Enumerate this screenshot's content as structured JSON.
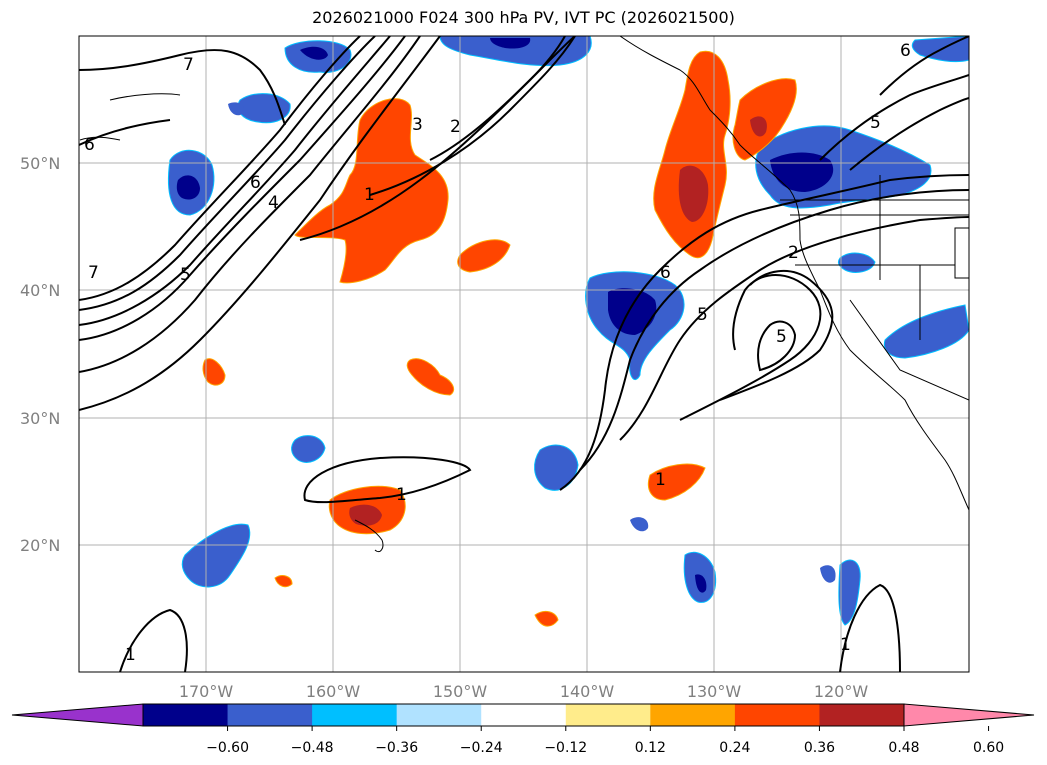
{
  "title": "2026021000 F024 300 hPa PV, IVT PC (2026021500)",
  "map": {
    "lon_range": [
      -180,
      -110
    ],
    "lat_range": [
      10,
      60
    ],
    "lat_labels": [
      "20°N",
      "30°N",
      "40°N",
      "50°N"
    ],
    "lat_values": [
      20,
      30,
      40,
      50
    ],
    "lon_labels": [
      "170°W",
      "160°W",
      "150°W",
      "140°W",
      "130°W",
      "120°W"
    ],
    "lon_values": [
      -170,
      -160,
      -150,
      -140,
      -130,
      -120
    ],
    "grid": true
  },
  "colorbar": {
    "ticks": [
      "−0.60",
      "−0.48",
      "−0.36",
      "−0.24",
      "−0.12",
      "0.12",
      "0.24",
      "0.36",
      "0.48",
      "0.60"
    ],
    "colors": [
      "#9932cc",
      "#00008b",
      "#3a5fcd",
      "#00bfff",
      "#b0e2ff",
      "#ffffff",
      "#ffec8b",
      "#ffa500",
      "#ff4500",
      "#b22222",
      "#ff88aa"
    ],
    "extend": "both"
  },
  "colors": {
    "shade_neg_strong": "#00008b",
    "shade_neg": "#3a5fcd",
    "shade_neg_light": "#00bfff",
    "shade_pos": "#ff4500",
    "shade_pos_strong": "#b22222",
    "shade_pos_light": "#ffec8b"
  },
  "contour_labels": [
    "7",
    "6",
    "5",
    "4",
    "3",
    "2",
    "1",
    "6",
    "5",
    "2",
    "5",
    "1",
    "1",
    "1",
    "1",
    "6",
    "7",
    "6",
    "5"
  ]
}
